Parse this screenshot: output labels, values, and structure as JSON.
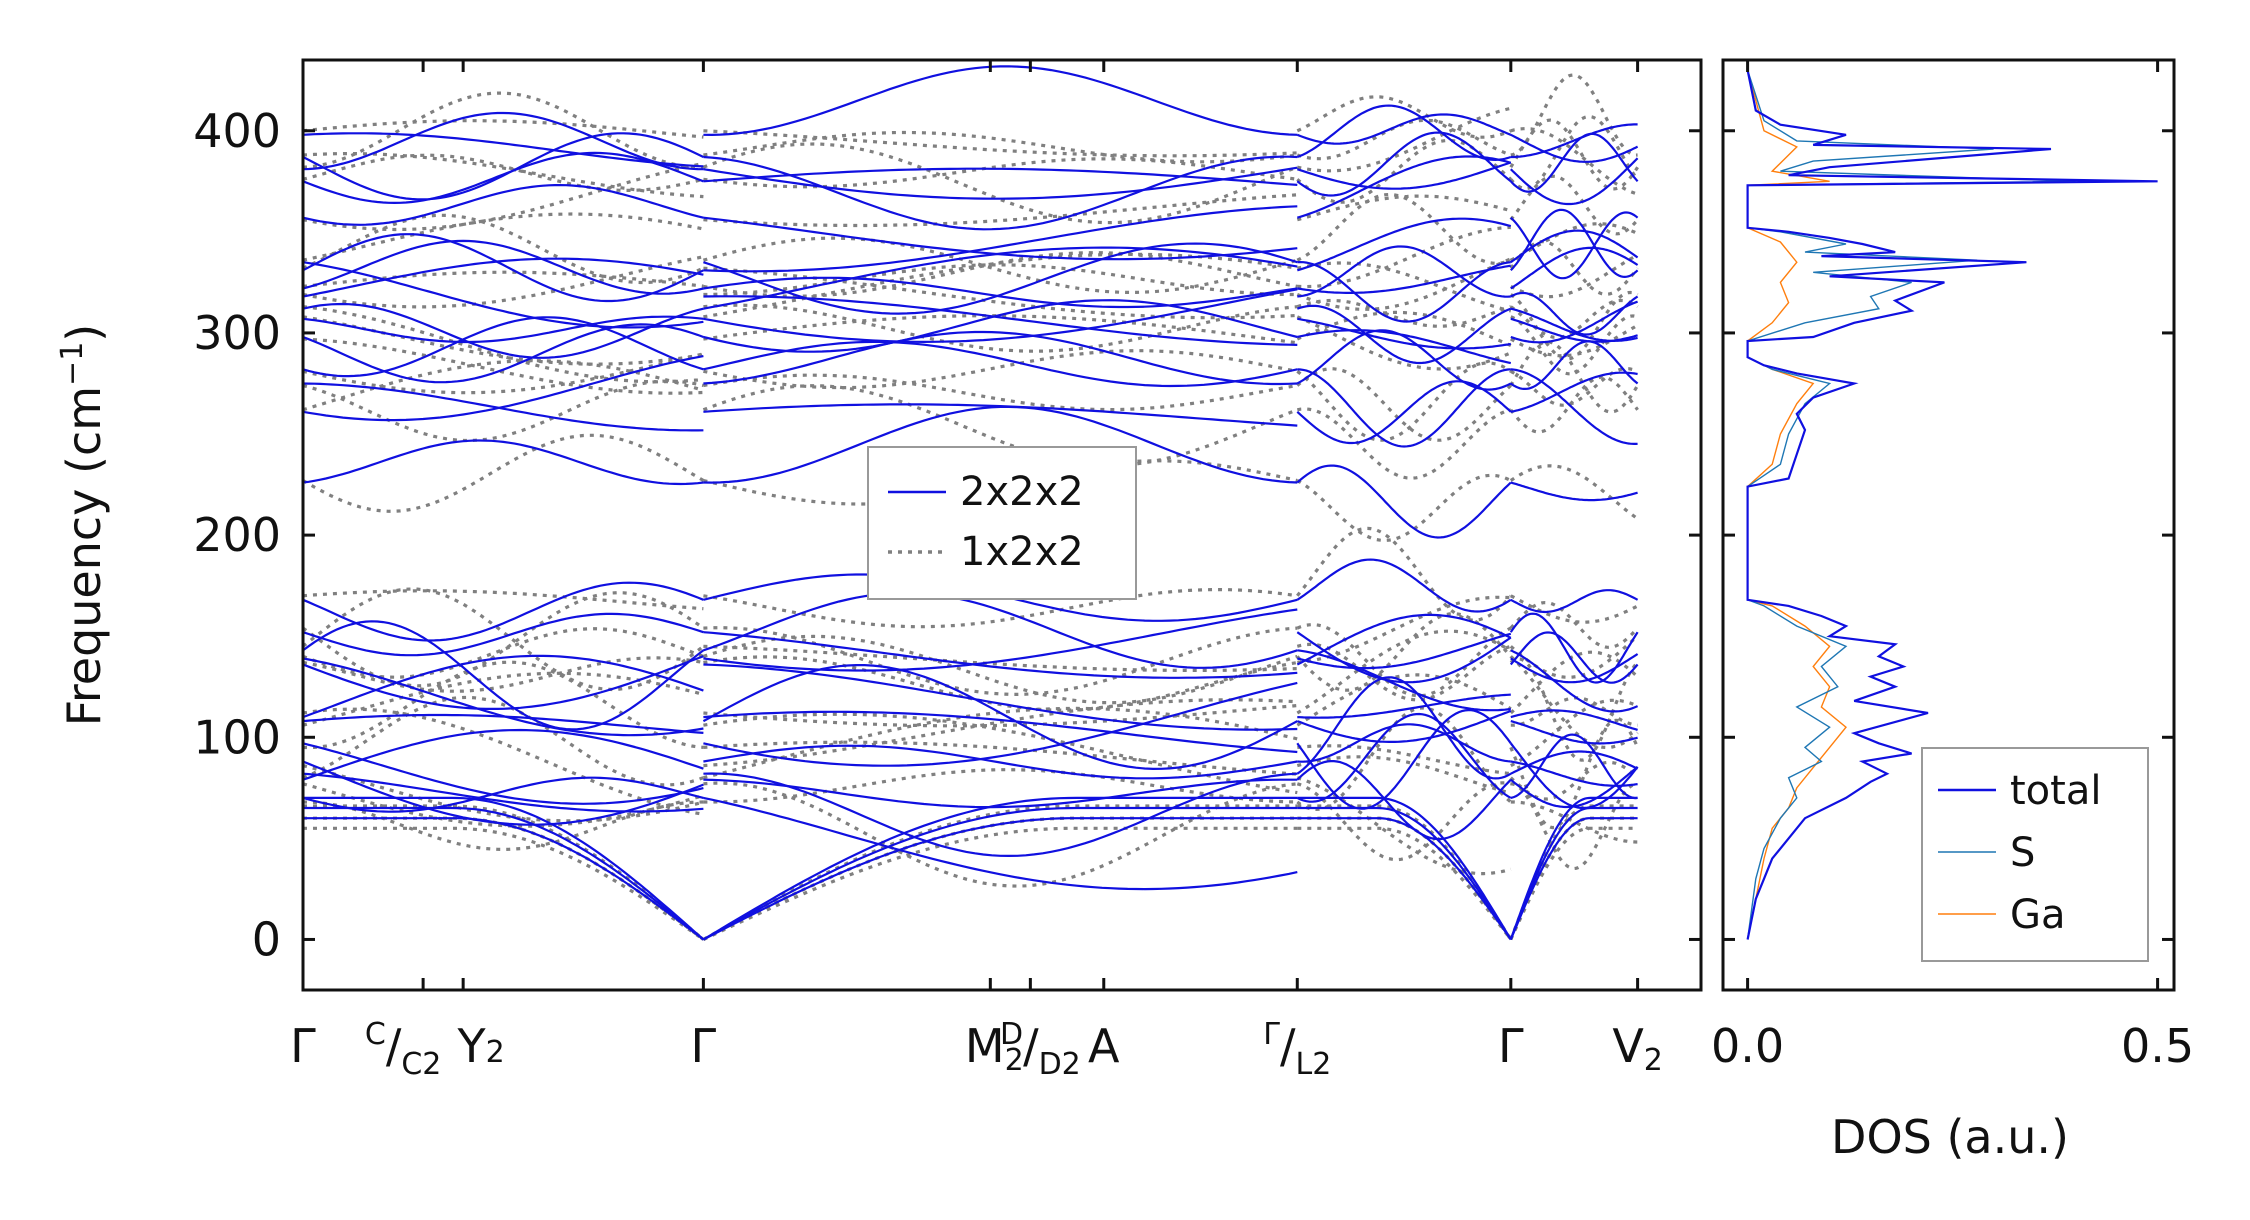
{
  "chart_data": [
    {
      "type": "line",
      "ylabel": "Frequency (cm$^{-1}$)",
      "ylim": [
        -25,
        435
      ],
      "yticks": [
        0,
        100,
        200,
        300,
        400
      ],
      "xlim": [
        0,
        2.095
      ],
      "grid": false,
      "legend": {
        "placement": "center",
        "entries": [
          {
            "name": "2x2x2",
            "style": "solid",
            "color": "#1010e0"
          },
          {
            "name": "1x2x2",
            "style": "dotted",
            "color": "#808080"
          }
        ]
      },
      "kpoints": [
        {
          "x": 0.0,
          "label": "Γ",
          "sub": ""
        },
        {
          "x": 0.18,
          "label": "C/C",
          "sub": "2",
          "special": "C/C2"
        },
        {
          "x": 0.24,
          "label": "Y",
          "sub": "2",
          "special": "Y2"
        },
        {
          "x": 0.6,
          "label": "Γ",
          "sub": ""
        },
        {
          "x": 1.03,
          "label": "M",
          "sub": "2",
          "special": "M2"
        },
        {
          "x": 1.09,
          "label": "D/D",
          "sub": "2",
          "special": "D/D2"
        },
        {
          "x": 1.2,
          "label": "A",
          "sub": ""
        },
        {
          "x": 1.49,
          "label": "Γ/L",
          "sub": "2",
          "special": "G/L2"
        },
        {
          "x": 1.81,
          "label": "Γ",
          "sub": ""
        },
        {
          "x": 2.0,
          "label": "V",
          "sub": "2",
          "special": "V2"
        }
      ],
      "segments": [
        {
          "range": [
            0.0,
            0.6
          ],
          "kind": "gamma-end"
        },
        {
          "range": [
            0.6,
            1.49
          ],
          "kind": "gamma-start"
        },
        {
          "range": [
            1.49,
            1.81
          ],
          "kind": "gamma-end"
        },
        {
          "range": [
            1.81,
            2.0
          ],
          "kind": "gamma-start"
        }
      ],
      "series": [
        {
          "name": "2x2x2",
          "color": "#1010e0",
          "optical_bands": [
            398,
            387,
            381,
            375,
            357,
            335,
            331,
            322,
            318,
            312,
            307,
            298,
            282,
            275,
            261,
            226,
            168,
            152,
            143,
            139,
            136,
            110,
            108,
            97,
            88,
            82,
            79,
            70
          ],
          "acoustic_top": [
            60,
            65,
            70
          ]
        },
        {
          "name": "1x2x2",
          "color": "#808080",
          "optical_bands": [
            400,
            388,
            382,
            376,
            356,
            336,
            332,
            323,
            319,
            313,
            308,
            297,
            281,
            274,
            262,
            227,
            170,
            154,
            145,
            140,
            137,
            112,
            106,
            95,
            86,
            80,
            77,
            68
          ],
          "acoustic_top": [
            55,
            60,
            66
          ]
        }
      ]
    },
    {
      "type": "line",
      "xlabel": "DOS (a.u.)",
      "xlim": [
        -0.03,
        0.52
      ],
      "xticks": [
        0.0,
        0.5
      ],
      "ylim": [
        -25,
        435
      ],
      "grid": false,
      "legend": {
        "placement": "bottom-right",
        "entries": [
          {
            "name": "total",
            "color": "#1010e0"
          },
          {
            "name": "S",
            "color": "#1f77b4"
          },
          {
            "name": "Ga",
            "color": "#ff7f0e"
          }
        ]
      },
      "series": [
        {
          "name": "total",
          "color": "#1010e0",
          "points": [
            [
              0,
              0
            ],
            [
              0.005,
              10
            ],
            [
              0.01,
              20
            ],
            [
              0.02,
              30
            ],
            [
              0.03,
              40
            ],
            [
              0.05,
              50
            ],
            [
              0.07,
              60
            ],
            [
              0.12,
              70
            ],
            [
              0.15,
              78
            ],
            [
              0.17,
              82
            ],
            [
              0.14,
              88
            ],
            [
              0.2,
              92
            ],
            [
              0.16,
              97
            ],
            [
              0.13,
              102
            ],
            [
              0.22,
              112
            ],
            [
              0.13,
              118
            ],
            [
              0.18,
              125
            ],
            [
              0.15,
              130
            ],
            [
              0.19,
              135
            ],
            [
              0.16,
              140
            ],
            [
              0.18,
              146
            ],
            [
              0.1,
              150
            ],
            [
              0.12,
              155
            ],
            [
              0.09,
              160
            ],
            [
              0.05,
              165
            ],
            [
              0.0,
              168
            ],
            [
              0.0,
              224
            ],
            [
              0.05,
              228
            ],
            [
              0.06,
              240
            ],
            [
              0.07,
              252
            ],
            [
              0.06,
              260
            ],
            [
              0.08,
              268
            ],
            [
              0.13,
              275
            ],
            [
              0.06,
              280
            ],
            [
              0.02,
              284
            ],
            [
              0.0,
              288
            ],
            [
              0.0,
              296
            ],
            [
              0.08,
              298
            ],
            [
              0.13,
              305
            ],
            [
              0.2,
              311
            ],
            [
              0.18,
              316
            ],
            [
              0.24,
              325
            ],
            [
              0.1,
              328
            ],
            [
              0.34,
              335
            ],
            [
              0.09,
              338
            ],
            [
              0.18,
              340
            ],
            [
              0.14,
              344
            ],
            [
              0.1,
              347
            ],
            [
              0.05,
              350
            ],
            [
              0.0,
              352
            ],
            [
              0.0,
              373
            ],
            [
              0.5,
              375
            ],
            [
              0.05,
              378
            ],
            [
              0.1,
              382
            ],
            [
              0.37,
              391
            ],
            [
              0.08,
              393
            ],
            [
              0.12,
              398
            ],
            [
              0.04,
              403
            ],
            [
              0.01,
              410
            ],
            [
              0.0,
              430
            ]
          ]
        },
        {
          "name": "S",
          "color": "#1f77b4",
          "points": [
            [
              0,
              0
            ],
            [
              0.005,
              15
            ],
            [
              0.01,
              30
            ],
            [
              0.02,
              45
            ],
            [
              0.04,
              60
            ],
            [
              0.06,
              70
            ],
            [
              0.05,
              80
            ],
            [
              0.09,
              88
            ],
            [
              0.07,
              95
            ],
            [
              0.1,
              105
            ],
            [
              0.06,
              115
            ],
            [
              0.11,
              125
            ],
            [
              0.09,
              135
            ],
            [
              0.12,
              145
            ],
            [
              0.06,
              155
            ],
            [
              0.02,
              165
            ],
            [
              0.0,
              168
            ],
            [
              0.0,
              224
            ],
            [
              0.04,
              235
            ],
            [
              0.05,
              250
            ],
            [
              0.07,
              265
            ],
            [
              0.1,
              275
            ],
            [
              0.03,
              282
            ],
            [
              0.0,
              288
            ],
            [
              0.0,
              296
            ],
            [
              0.07,
              305
            ],
            [
              0.16,
              312
            ],
            [
              0.15,
              318
            ],
            [
              0.2,
              325
            ],
            [
              0.08,
              330
            ],
            [
              0.28,
              336
            ],
            [
              0.07,
              340
            ],
            [
              0.12,
              344
            ],
            [
              0.04,
              350
            ],
            [
              0.0,
              352
            ],
            [
              0.0,
              373
            ],
            [
              0.4,
              375
            ],
            [
              0.04,
              380
            ],
            [
              0.08,
              385
            ],
            [
              0.3,
              391
            ],
            [
              0.06,
              395
            ],
            [
              0.02,
              405
            ],
            [
              0.0,
              430
            ]
          ]
        },
        {
          "name": "Ga",
          "color": "#ff7f0e",
          "points": [
            [
              0,
              0
            ],
            [
              0.01,
              20
            ],
            [
              0.02,
              40
            ],
            [
              0.03,
              55
            ],
            [
              0.05,
              65
            ],
            [
              0.06,
              75
            ],
            [
              0.08,
              85
            ],
            [
              0.1,
              95
            ],
            [
              0.12,
              105
            ],
            [
              0.09,
              115
            ],
            [
              0.1,
              125
            ],
            [
              0.08,
              135
            ],
            [
              0.1,
              145
            ],
            [
              0.07,
              155
            ],
            [
              0.03,
              165
            ],
            [
              0.0,
              168
            ],
            [
              0.0,
              224
            ],
            [
              0.03,
              235
            ],
            [
              0.04,
              250
            ],
            [
              0.06,
              265
            ],
            [
              0.08,
              275
            ],
            [
              0.03,
              282
            ],
            [
              0.0,
              288
            ],
            [
              0.0,
              296
            ],
            [
              0.03,
              305
            ],
            [
              0.05,
              315
            ],
            [
              0.04,
              325
            ],
            [
              0.06,
              335
            ],
            [
              0.04,
              345
            ],
            [
              0.0,
              352
            ],
            [
              0.0,
              373
            ],
            [
              0.1,
              375
            ],
            [
              0.03,
              380
            ],
            [
              0.05,
              388
            ],
            [
              0.06,
              392
            ],
            [
              0.02,
              400
            ],
            [
              0.0,
              430
            ]
          ]
        }
      ]
    }
  ]
}
